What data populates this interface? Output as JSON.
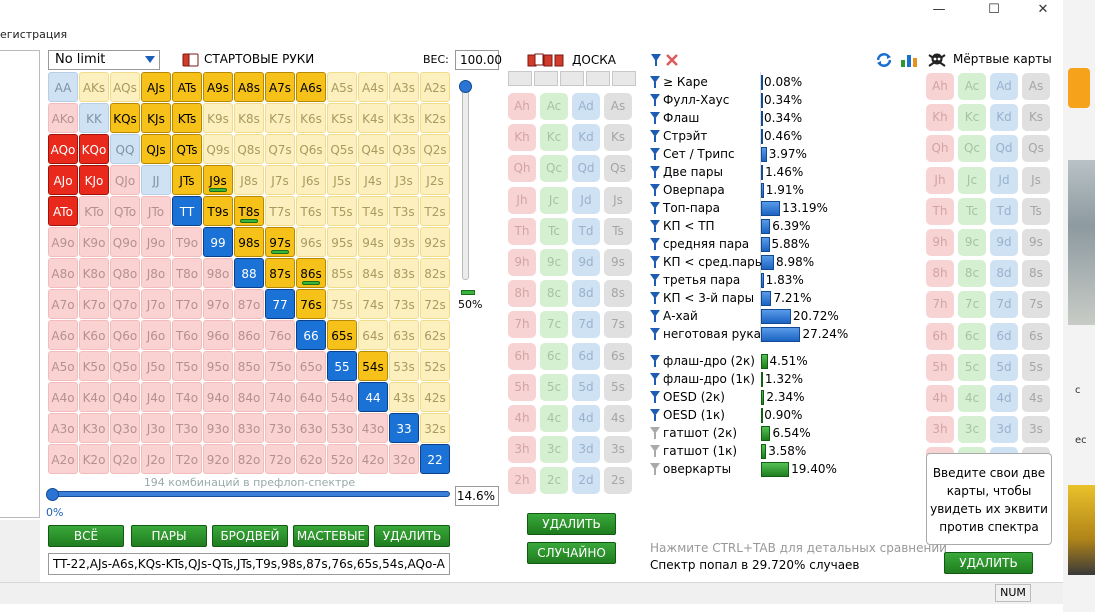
{
  "window": {
    "title": "егистрация",
    "minimize_label": "—",
    "maximize_label": "☐",
    "close_label": "✕"
  },
  "controls": {
    "limit": "No limit",
    "hands_title": "СТАРТОВЫЕ РУКИ",
    "weight_label": "ВЕС:",
    "weight_value": "100.00",
    "vslider_value": "50%",
    "combos_label": "194 комбинаций в префлоп-спектре",
    "hslider_percent": "14.6%",
    "hslider_min": "0%"
  },
  "hand_grid": {
    "rows": [
      [
        "AA",
        "AKs",
        "AQs",
        "AJs",
        "ATs",
        "A9s",
        "A8s",
        "A7s",
        "A6s",
        "A5s",
        "A4s",
        "A3s",
        "A2s"
      ],
      [
        "AKo",
        "KK",
        "KQs",
        "KJs",
        "KTs",
        "K9s",
        "K8s",
        "K7s",
        "K6s",
        "K5s",
        "K4s",
        "K3s",
        "K2s"
      ],
      [
        "AQo",
        "KQo",
        "QQ",
        "QJs",
        "QTs",
        "Q9s",
        "Q8s",
        "Q7s",
        "Q6s",
        "Q5s",
        "Q4s",
        "Q3s",
        "Q2s"
      ],
      [
        "AJo",
        "KJo",
        "QJo",
        "JJ",
        "JTs",
        "J9s",
        "J8s",
        "J7s",
        "J6s",
        "J5s",
        "J4s",
        "J3s",
        "J2s"
      ],
      [
        "ATo",
        "KTo",
        "QTo",
        "JTo",
        "TT",
        "T9s",
        "T8s",
        "T7s",
        "T6s",
        "T5s",
        "T4s",
        "T3s",
        "T2s"
      ],
      [
        "A9o",
        "K9o",
        "Q9o",
        "J9o",
        "T9o",
        "99",
        "98s",
        "97s",
        "96s",
        "95s",
        "94s",
        "93s",
        "92s"
      ],
      [
        "A8o",
        "K8o",
        "Q8o",
        "J8o",
        "T8o",
        "98o",
        "88",
        "87s",
        "86s",
        "85s",
        "84s",
        "83s",
        "82s"
      ],
      [
        "A7o",
        "K7o",
        "Q7o",
        "J7o",
        "T7o",
        "97o",
        "87o",
        "77",
        "76s",
        "75s",
        "74s",
        "73s",
        "72s"
      ],
      [
        "A6o",
        "K6o",
        "Q6o",
        "J6o",
        "T6o",
        "96o",
        "86o",
        "76o",
        "66",
        "65s",
        "64s",
        "63s",
        "62s"
      ],
      [
        "A5o",
        "K5o",
        "Q5o",
        "J5o",
        "T5o",
        "95o",
        "85o",
        "75o",
        "65o",
        "55",
        "54s",
        "53s",
        "52s"
      ],
      [
        "A4o",
        "K4o",
        "Q4o",
        "J4o",
        "T4o",
        "94o",
        "84o",
        "74o",
        "64o",
        "54o",
        "44",
        "43s",
        "42s"
      ],
      [
        "A3o",
        "K3o",
        "Q3o",
        "J3o",
        "T3o",
        "93o",
        "83o",
        "73o",
        "63o",
        "53o",
        "43o",
        "33",
        "32s"
      ],
      [
        "A2o",
        "K2o",
        "Q2o",
        "J2o",
        "T2o",
        "92o",
        "82o",
        "72o",
        "62o",
        "52o",
        "42o",
        "32o",
        "22"
      ]
    ],
    "selected": [
      "AJs",
      "ATs",
      "A9s",
      "A8s",
      "A7s",
      "A6s",
      "KQs",
      "KJs",
      "KTs",
      "AQo",
      "KQo",
      "QJs",
      "QTs",
      "AJo",
      "KJo",
      "JTs",
      "J9s",
      "ATo",
      "TT",
      "T9s",
      "T8s",
      "99",
      "98s",
      "97s",
      "88",
      "87s",
      "86s",
      "77",
      "76s",
      "66",
      "65s",
      "55",
      "54s",
      "44",
      "33",
      "22"
    ],
    "partial": [
      "J9s",
      "T8s",
      "97s",
      "86s"
    ]
  },
  "buttons": {
    "all": "ВСЁ",
    "pairs": "ПАРЫ",
    "broadway": "БРОДВЕЙ",
    "suited": "МАСТЕВЫЕ",
    "delete_range": "УДАЛИТЬ",
    "board_delete": "УДАЛИТЬ",
    "random": "СЛУЧАЙНО",
    "dead_delete": "УДАЛИТЬ"
  },
  "range_text": "TT-22,AJs-A6s,KQs-KTs,QJs-QTs,JTs,T9s,98s,87s,76s,65s,54s,AQo-A",
  "board": {
    "title": "ДОСКА",
    "ranks": [
      "A",
      "K",
      "Q",
      "J",
      "T",
      "9",
      "8",
      "7",
      "6",
      "5",
      "4",
      "3",
      "2"
    ],
    "suits": [
      "h",
      "c",
      "d",
      "s"
    ]
  },
  "stats": [
    {
      "name": "≥ Каре",
      "value": "0.08%",
      "pct": 0.08,
      "funnel": "blue",
      "bar": "blue",
      "y": 73
    },
    {
      "name": "Фулл-Хаус",
      "value": "0.34%",
      "pct": 0.34,
      "funnel": "blue",
      "bar": "blue",
      "y": 91
    },
    {
      "name": "Флаш",
      "value": "0.34%",
      "pct": 0.34,
      "funnel": "blue",
      "bar": "blue",
      "y": 109
    },
    {
      "name": "Стрэйт",
      "value": "0.46%",
      "pct": 0.46,
      "funnel": "blue",
      "bar": "blue",
      "y": 127
    },
    {
      "name": "Сет / Трипс",
      "value": "3.97%",
      "pct": 3.97,
      "funnel": "blue",
      "bar": "blue",
      "y": 145
    },
    {
      "name": "Две пары",
      "value": "1.46%",
      "pct": 1.46,
      "funnel": "blue",
      "bar": "blue",
      "y": 163
    },
    {
      "name": "Оверпара",
      "value": "1.91%",
      "pct": 1.91,
      "funnel": "blue",
      "bar": "blue",
      "y": 181
    },
    {
      "name": "Топ-пара",
      "value": "13.19%",
      "pct": 13.19,
      "funnel": "blue",
      "bar": "blue",
      "y": 199
    },
    {
      "name": "КП < ТП",
      "value": "6.39%",
      "pct": 6.39,
      "funnel": "blue",
      "bar": "blue",
      "y": 217
    },
    {
      "name": "средняя пара",
      "value": "5.88%",
      "pct": 5.88,
      "funnel": "blue",
      "bar": "blue",
      "y": 235
    },
    {
      "name": "КП < сред.пары",
      "value": "8.98%",
      "pct": 8.98,
      "funnel": "blue",
      "bar": "blue",
      "y": 253
    },
    {
      "name": "третья пара",
      "value": "1.83%",
      "pct": 1.83,
      "funnel": "blue",
      "bar": "blue",
      "y": 271
    },
    {
      "name": "КП < 3-й пары",
      "value": "7.21%",
      "pct": 7.21,
      "funnel": "blue",
      "bar": "blue",
      "y": 289
    },
    {
      "name": "А-хай",
      "value": "20.72%",
      "pct": 20.72,
      "funnel": "blue",
      "bar": "blue",
      "y": 307
    },
    {
      "name": "неготовая рука",
      "value": "27.24%",
      "pct": 27.24,
      "funnel": "blue",
      "bar": "blue",
      "y": 325
    },
    {
      "name": "флаш-дро (2к)",
      "value": "4.51%",
      "pct": 4.51,
      "funnel": "blue",
      "bar": "green",
      "y": 352
    },
    {
      "name": "флаш-дро (1к)",
      "value": "1.32%",
      "pct": 1.32,
      "funnel": "blue",
      "bar": "green",
      "y": 370
    },
    {
      "name": "OESD (2к)",
      "value": "2.34%",
      "pct": 2.34,
      "funnel": "blue",
      "bar": "green",
      "y": 388
    },
    {
      "name": "OESD (1к)",
      "value": "0.90%",
      "pct": 0.9,
      "funnel": "blue",
      "bar": "green",
      "y": 406
    },
    {
      "name": "гатшот (2к)",
      "value": "6.54%",
      "pct": 6.54,
      "funnel": "gray",
      "bar": "green",
      "y": 424
    },
    {
      "name": "гатшот (1к)",
      "value": "3.58%",
      "pct": 3.58,
      "funnel": "gray",
      "bar": "green",
      "y": 442
    },
    {
      "name": "оверкарты",
      "value": "19.40%",
      "pct": 19.4,
      "funnel": "gray",
      "bar": "green",
      "y": 460
    }
  ],
  "hint": "Нажмите CTRL+TAB для детальных сравнений",
  "hit_text": "Спектр попал в 29.720% случаев",
  "dead": {
    "title": "Мёртвые карты",
    "hint_box": "Введите свои две карты, чтобы увидеть их эквити против спектра"
  },
  "status": {
    "num": "NUM"
  },
  "side_text": {
    "a": "с",
    "b": "ес"
  },
  "colors": {
    "selected_offsuit": "#e8291c",
    "selected_suited": "#f6c21a",
    "selected_pair": "#1b72d6",
    "button_green": "#2a9a2a"
  },
  "icons": [
    "hands-icon",
    "board-icon",
    "filter-icon",
    "clear-filter-icon",
    "refresh-icon",
    "chart-icon",
    "skull-icon"
  ]
}
